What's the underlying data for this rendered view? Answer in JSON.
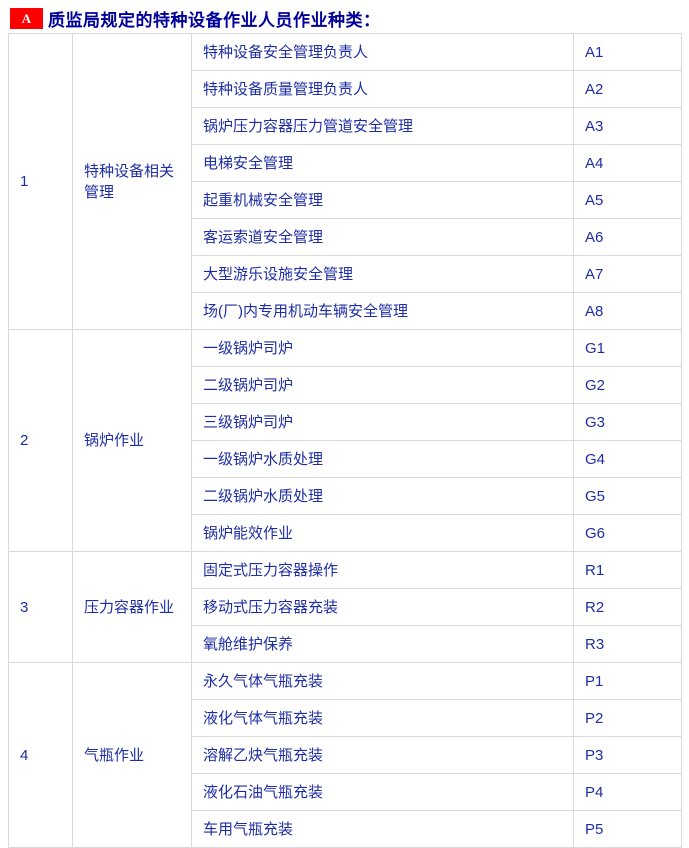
{
  "page": {
    "badge": "A",
    "title": "质监局规定的特种设备作业人员作业种类："
  },
  "colors": {
    "badge_background": "#fe0000",
    "badge_text": "#ffffff",
    "title_text": "#000099",
    "cell_text": "#1e2da4",
    "table_border": "#d9d9d9"
  },
  "table": {
    "sections": [
      {
        "number": "1",
        "category": "特种设备相关管理",
        "items": [
          {
            "job": "特种设备安全管理负责人",
            "code": "A1"
          },
          {
            "job": "特种设备质量管理负责人",
            "code": "A2"
          },
          {
            "job": "锅炉压力容器压力管道安全管理",
            "code": "A3"
          },
          {
            "job": "电梯安全管理",
            "code": "A4"
          },
          {
            "job": "起重机械安全管理",
            "code": "A5"
          },
          {
            "job": "客运索道安全管理",
            "code": "A6"
          },
          {
            "job": "大型游乐设施安全管理",
            "code": "A7"
          },
          {
            "job": "场(厂)内专用机动车辆安全管理",
            "code": "A8"
          }
        ]
      },
      {
        "number": "2",
        "category": "锅炉作业",
        "items": [
          {
            "job": "一级锅炉司炉",
            "code": "G1"
          },
          {
            "job": "二级锅炉司炉",
            "code": "G2"
          },
          {
            "job": "三级锅炉司炉",
            "code": "G3"
          },
          {
            "job": "一级锅炉水质处理",
            "code": "G4"
          },
          {
            "job": "二级锅炉水质处理",
            "code": "G5"
          },
          {
            "job": "锅炉能效作业",
            "code": "G6"
          }
        ]
      },
      {
        "number": "3",
        "category": "压力容器作业",
        "items": [
          {
            "job": "固定式压力容器操作",
            "code": "R1"
          },
          {
            "job": "移动式压力容器充装",
            "code": "R2"
          },
          {
            "job": "氧舱维护保养",
            "code": "R3"
          }
        ]
      },
      {
        "number": "4",
        "category": "气瓶作业",
        "items": [
          {
            "job": "永久气体气瓶充装",
            "code": "P1"
          },
          {
            "job": "液化气体气瓶充装",
            "code": "P2"
          },
          {
            "job": "溶解乙炔气瓶充装",
            "code": "P3"
          },
          {
            "job": "液化石油气瓶充装",
            "code": "P4"
          },
          {
            "job": "车用气瓶充装",
            "code": "P5"
          }
        ]
      }
    ]
  }
}
